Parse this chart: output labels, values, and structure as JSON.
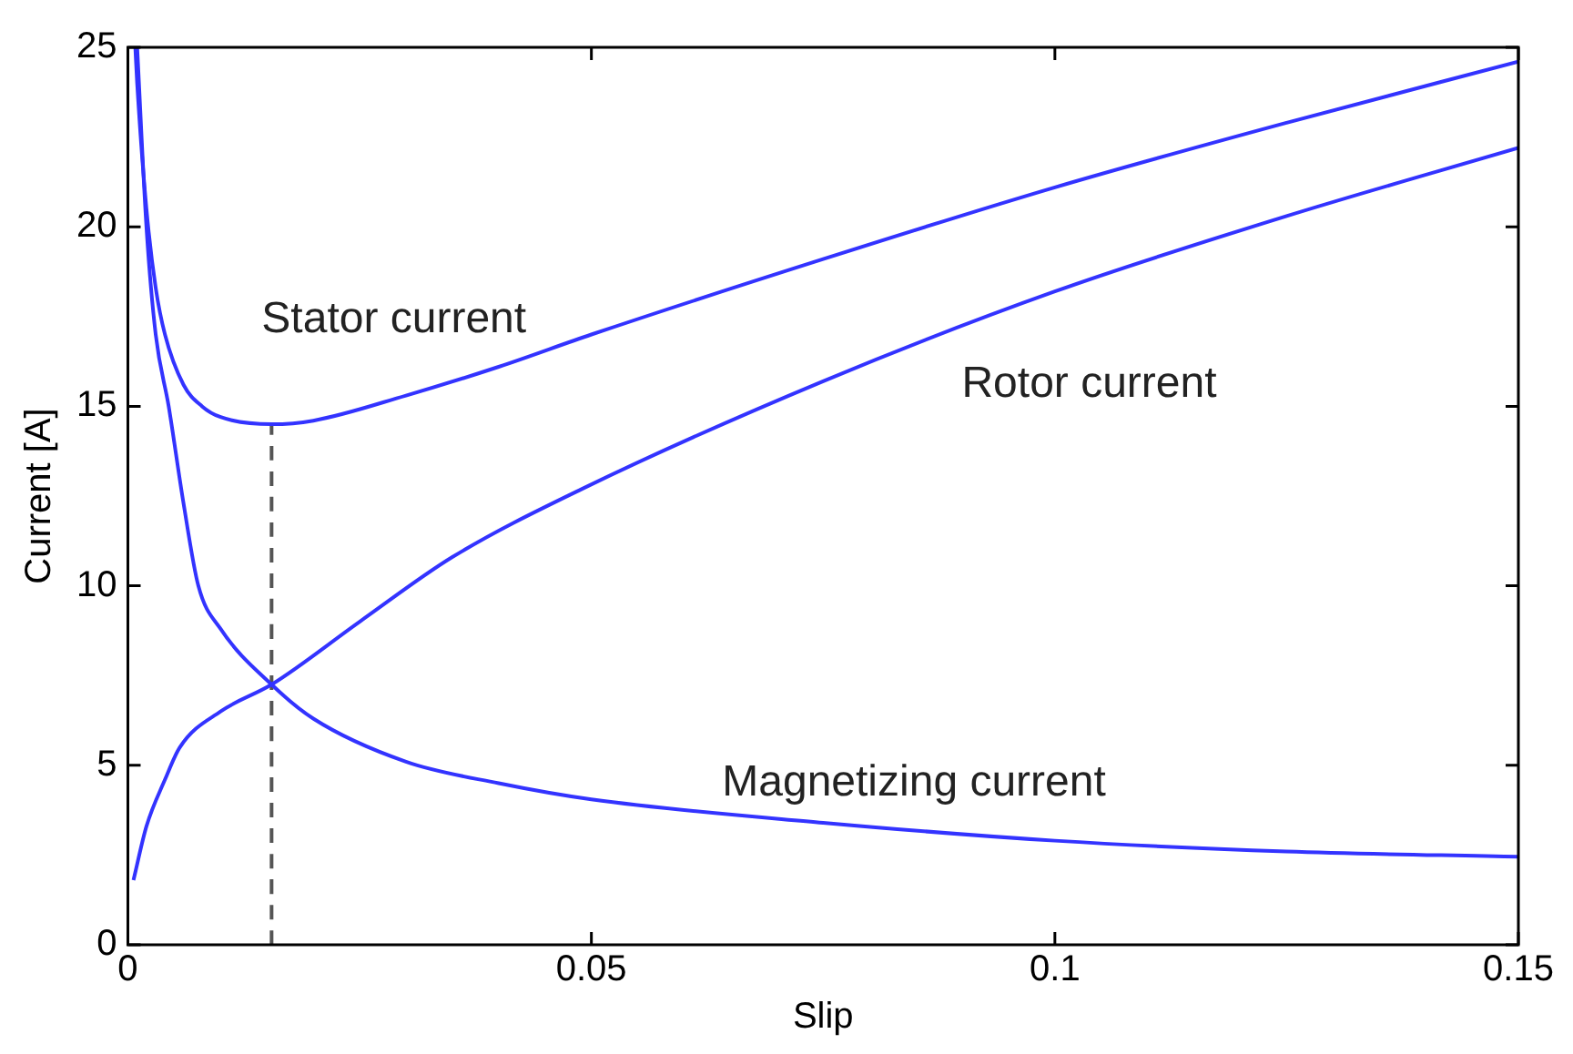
{
  "chart_data": {
    "type": "line",
    "xlabel": "Slip",
    "ylabel": "Current [A]",
    "xlim": [
      0,
      0.15
    ],
    "xticks": [
      0,
      0.05,
      0.1,
      0.15
    ],
    "ylim": [
      0,
      25
    ],
    "yticks": [
      0,
      5,
      10,
      15,
      20,
      25
    ],
    "grid": false,
    "legend": false,
    "marker": "none",
    "line_style": "solid",
    "series": [
      {
        "name": "Stator current",
        "color": "#3333ff",
        "x": [
          0.0008,
          0.001,
          0.002,
          0.003,
          0.004,
          0.006,
          0.008,
          0.01,
          0.0155,
          0.02,
          0.03,
          0.04,
          0.05,
          0.075,
          0.1,
          0.125,
          0.15
        ],
        "values": [
          25,
          24,
          20.5,
          18.3,
          17,
          15.6,
          15,
          14.7,
          14.5,
          14.6,
          15.3,
          16.1,
          17,
          19.1,
          21.1,
          22.9,
          24.6
        ]
      },
      {
        "name": "Rotor current",
        "color": "#3333ff",
        "x": [
          0.0006,
          0.002,
          0.004,
          0.0056,
          0.01,
          0.0155,
          0.025,
          0.035,
          0.049,
          0.075,
          0.1,
          0.125,
          0.15
        ],
        "values": [
          1.8,
          3.3,
          4.6,
          5.5,
          6.5,
          7.25,
          9,
          10.8,
          12.7,
          15.7,
          18.2,
          20.3,
          22.2
        ]
      },
      {
        "name": "Magnetizing current",
        "color": "#3333ff",
        "x": [
          0.001,
          0.002,
          0.003,
          0.0044,
          0.006,
          0.0076,
          0.01,
          0.0155,
          0.02,
          0.03,
          0.04,
          0.05,
          0.075,
          0.1,
          0.125,
          0.15
        ],
        "values": [
          25,
          20,
          17,
          15,
          12.3,
          10,
          8.8,
          7.25,
          6.3,
          5.1,
          4.5,
          4.05,
          3.4,
          2.9,
          2.6,
          2.45
        ]
      },
      {
        "color": "#555555",
        "line_style": "dashed",
        "x": [
          0.0155,
          0.0155
        ],
        "values": [
          0,
          14.5
        ]
      }
    ]
  }
}
